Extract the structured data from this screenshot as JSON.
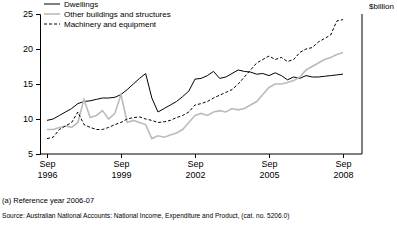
{
  "chart_data": {
    "type": "line",
    "y_label": "$billion",
    "footnote": "(a) Reference year 2006-07",
    "source": "Source: Australian National Accounts: National Income, Expenditure and Product, (cat. no. 5206.0)",
    "categories": [
      "Sep 1996",
      null,
      null,
      null,
      null,
      null,
      null,
      null,
      null,
      null,
      null,
      null,
      "Sep 1999",
      null,
      null,
      null,
      null,
      null,
      null,
      null,
      null,
      null,
      null,
      null,
      "Sep 2002",
      null,
      null,
      null,
      null,
      null,
      null,
      null,
      null,
      null,
      null,
      null,
      "Sep 2005",
      null,
      null,
      null,
      null,
      null,
      null,
      null,
      null,
      null,
      null,
      null,
      "Sep 2008"
    ],
    "ylim": [
      5,
      25
    ],
    "yticks": [
      5,
      10,
      15,
      20,
      25
    ],
    "grid": false,
    "legend": "top-left",
    "series": [
      {
        "name": "Dwellings",
        "color": "#000000",
        "line_style": "solid",
        "values": [
          9.8,
          10.0,
          10.5,
          11.0,
          11.5,
          12.2,
          12.5,
          12.6,
          12.8,
          13.0,
          13.0,
          13.1,
          13.5,
          14.2,
          15.0,
          15.8,
          16.5,
          13.0,
          11.0,
          11.5,
          12.0,
          12.5,
          13.2,
          14.0,
          15.7,
          15.8,
          16.2,
          16.8,
          15.8,
          16.0,
          16.5,
          17.0,
          16.8,
          16.7,
          16.4,
          16.5,
          16.2,
          16.6,
          16.2,
          15.6,
          16.0,
          15.8,
          16.2,
          16.0,
          16.0,
          16.1,
          16.2,
          16.3,
          16.4
        ]
      },
      {
        "name": "Other buildings and structures",
        "color": "#bbbbbb",
        "line_style": "solid",
        "values": [
          8.5,
          8.5,
          8.8,
          9.0,
          8.8,
          9.5,
          12.8,
          10.2,
          10.5,
          11.2,
          10.0,
          10.8,
          13.5,
          9.5,
          9.8,
          9.5,
          9.2,
          7.2,
          7.6,
          7.4,
          7.7,
          8.0,
          8.5,
          9.5,
          10.5,
          10.8,
          10.5,
          11.0,
          11.2,
          11.0,
          11.5,
          11.3,
          11.5,
          12.0,
          12.5,
          13.5,
          14.5,
          15.0,
          15.0,
          15.2,
          15.5,
          16.0,
          17.0,
          17.5,
          18.0,
          18.5,
          18.8,
          19.2,
          19.5
        ]
      },
      {
        "name": "Machinery and equipment",
        "color": "#000000",
        "line_style": "dashed",
        "values": [
          7.2,
          7.4,
          8.5,
          9.0,
          9.5,
          11.0,
          9.2,
          8.8,
          8.5,
          8.5,
          8.8,
          9.2,
          9.5,
          10.0,
          10.2,
          10.3,
          10.0,
          9.8,
          9.5,
          9.6,
          9.8,
          10.2,
          10.5,
          11.0,
          12.0,
          12.2,
          12.5,
          13.0,
          13.4,
          13.8,
          14.2,
          15.0,
          16.0,
          17.0,
          18.0,
          18.5,
          19.0,
          18.5,
          18.8,
          18.2,
          18.5,
          19.5,
          20.0,
          20.2,
          21.0,
          21.5,
          22.0,
          24.0,
          24.2
        ]
      }
    ]
  }
}
